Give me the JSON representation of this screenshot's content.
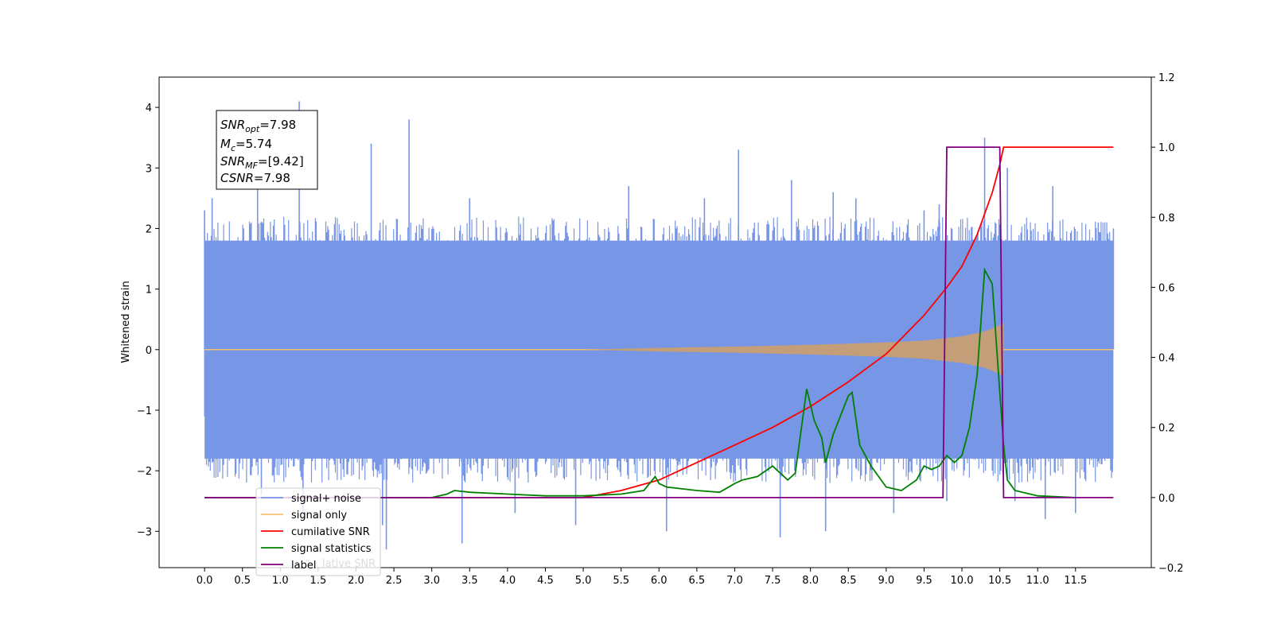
{
  "chart_data": {
    "type": "line",
    "xlabel": "",
    "ylabel": "Whitened strain",
    "xlim": [
      -0.6,
      12.5
    ],
    "ylim": [
      -3.6,
      4.5
    ],
    "y2lim": [
      -0.2,
      1.2
    ],
    "grid": false,
    "legend_position": "lower-left",
    "x_ticks": [
      "0.0",
      "0.5",
      "1.0",
      "1.5",
      "2.0",
      "2.5",
      "3.0",
      "3.5",
      "4.0",
      "4.5",
      "5.0",
      "5.5",
      "6.0",
      "6.5",
      "7.0",
      "7.5",
      "8.0",
      "8.5",
      "9.0",
      "9.5",
      "10.0",
      "10.5",
      "11.0",
      "11.5"
    ],
    "y_ticks": [
      "4",
      "3",
      "2",
      "1",
      "0",
      "−1",
      "−2",
      "−3"
    ],
    "y2_ticks": [
      "1.2",
      "1.0",
      "0.8",
      "0.6",
      "0.4",
      "0.2",
      "0.0",
      "−0.2"
    ],
    "annotation": {
      "lines": [
        {
          "main": "SNR",
          "sub": "opt",
          "value": "=7.98"
        },
        {
          "main": "M",
          "sub": "c",
          "value": "=5.74"
        },
        {
          "main": "SNR",
          "sub": "MF",
          "value": "=[9.42]"
        },
        {
          "main": "CSNR",
          "sub": "",
          "value": "=7.98"
        }
      ]
    },
    "legend": [
      {
        "label": "signal+ noise",
        "color": "#7896e6"
      },
      {
        "label": "signal only",
        "color": "#f5c070"
      },
      {
        "label": "cumilative SNR",
        "color": "#ff0000"
      },
      {
        "label": "signal statistics",
        "color": "#008000"
      },
      {
        "label": "label",
        "color": "#800080"
      }
    ],
    "legend_overlap_text": "lative SNR",
    "series": [
      {
        "name": "signal+ noise",
        "axis": "left",
        "color": "#7896e6",
        "envelope": true,
        "x_range": [
          0.0,
          12.0
        ],
        "lower": -2.0,
        "upper": 2.0,
        "peaks_x": [
          0.0,
          0.05,
          0.1,
          0.7,
          0.75,
          1.25,
          1.3,
          2.2,
          2.35,
          2.4,
          2.7,
          3.4,
          3.5,
          4.1,
          4.9,
          5.6,
          6.1,
          6.6,
          7.05,
          7.6,
          7.75,
          8.2,
          8.3,
          8.6,
          9.1,
          9.5,
          9.7,
          9.8,
          10.3,
          10.6,
          10.7,
          11.1,
          11.2,
          11.5,
          11.8,
          12.0
        ],
        "peaks_y": [
          2.3,
          -1.4,
          2.5,
          2.9,
          -2.4,
          4.1,
          -2.8,
          3.4,
          -2.9,
          -3.3,
          3.8,
          -3.2,
          2.5,
          -2.7,
          -2.9,
          2.7,
          -3.0,
          2.5,
          3.3,
          -3.1,
          2.8,
          -3.0,
          2.6,
          2.5,
          -2.7,
          2.3,
          2.4,
          -2.5,
          3.5,
          3.0,
          -2.5,
          -2.8,
          2.7,
          -2.7,
          2.1,
          2.0
        ]
      },
      {
        "name": "signal only",
        "axis": "left",
        "color": "#f5c070",
        "chirp_start": 5.0,
        "chirp_end": 10.55,
        "x": [
          0,
          5.0,
          6.0,
          7.0,
          8.0,
          9.0,
          9.5,
          10.0,
          10.3,
          10.5,
          10.55
        ],
        "amplitude": [
          0,
          0.0,
          0.03,
          0.05,
          0.08,
          0.12,
          0.15,
          0.22,
          0.3,
          0.4,
          0.45
        ]
      },
      {
        "name": "cumilative SNR",
        "axis": "right",
        "color": "#ff0000",
        "x": [
          0,
          5.0,
          5.5,
          6.0,
          6.5,
          7.0,
          7.5,
          8.0,
          8.5,
          9.0,
          9.5,
          9.8,
          10.0,
          10.2,
          10.4,
          10.5,
          10.55,
          12.0
        ],
        "values": [
          0,
          0.0,
          0.02,
          0.05,
          0.1,
          0.15,
          0.2,
          0.26,
          0.33,
          0.41,
          0.52,
          0.6,
          0.66,
          0.75,
          0.87,
          0.95,
          1.0,
          1.0
        ]
      },
      {
        "name": "signal statistics",
        "axis": "right",
        "color": "#008000",
        "x": [
          0,
          3.0,
          3.2,
          3.3,
          3.5,
          4.0,
          4.5,
          5.0,
          5.5,
          5.8,
          5.95,
          6.0,
          6.1,
          6.5,
          6.8,
          7.0,
          7.1,
          7.3,
          7.5,
          7.7,
          7.8,
          7.95,
          8.05,
          8.15,
          8.2,
          8.3,
          8.5,
          8.55,
          8.65,
          8.8,
          9.0,
          9.2,
          9.4,
          9.5,
          9.6,
          9.7,
          9.8,
          9.9,
          10.0,
          10.1,
          10.2,
          10.3,
          10.4,
          10.5,
          10.55,
          10.6,
          10.7,
          11.0,
          11.5
        ],
        "values": [
          0,
          0.0,
          0.01,
          0.02,
          0.015,
          0.01,
          0.005,
          0.005,
          0.01,
          0.02,
          0.06,
          0.04,
          0.03,
          0.02,
          0.015,
          0.04,
          0.05,
          0.06,
          0.09,
          0.05,
          0.07,
          0.31,
          0.22,
          0.17,
          0.1,
          0.18,
          0.29,
          0.3,
          0.15,
          0.09,
          0.03,
          0.02,
          0.05,
          0.09,
          0.08,
          0.09,
          0.12,
          0.1,
          0.12,
          0.2,
          0.35,
          0.65,
          0.61,
          0.3,
          0.15,
          0.05,
          0.02,
          0.005,
          0.0
        ]
      },
      {
        "name": "label",
        "axis": "right",
        "color": "#800080",
        "x": [
          0,
          9.75,
          9.8,
          10.5,
          10.55,
          12.0
        ],
        "values": [
          0,
          0,
          1,
          1,
          0,
          0
        ]
      }
    ]
  }
}
